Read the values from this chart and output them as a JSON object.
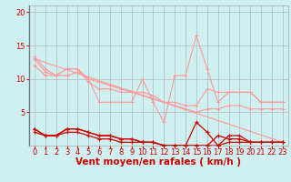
{
  "background_color": "#cff0f0",
  "grid_color": "#aaaaaa",
  "xlabel": "Vent moyen/en rafales ( km/h )",
  "xlabel_color": "#cc0000",
  "xlabel_fontsize": 7.5,
  "tick_color": "#cc0000",
  "tick_fontsize": 6.0,
  "xlim": [
    -0.5,
    23.5
  ],
  "ylim": [
    0,
    21
  ],
  "yticks": [
    5,
    10,
    15,
    20
  ],
  "xticks": [
    0,
    1,
    2,
    3,
    4,
    5,
    6,
    7,
    8,
    9,
    10,
    11,
    12,
    13,
    14,
    15,
    16,
    17,
    18,
    19,
    20,
    21,
    22,
    23
  ],
  "line_light_color": "#ff9999",
  "line_dark_color": "#cc0000",
  "lines_light": [
    {
      "x": [
        0,
        1,
        2,
        3,
        4,
        5,
        6,
        7,
        8,
        9,
        10,
        11,
        12,
        13,
        14,
        15,
        16,
        17,
        18,
        19,
        20,
        21,
        22,
        23
      ],
      "y": [
        13.3,
        11.5,
        10.5,
        11.5,
        11.5,
        10.0,
        6.5,
        6.5,
        6.5,
        6.5,
        10.0,
        6.5,
        3.5,
        10.5,
        10.5,
        16.5,
        11.5,
        6.5,
        8.0,
        8.0,
        8.0,
        6.5,
        6.5,
        6.5
      ]
    },
    {
      "x": [
        0,
        1,
        2,
        3,
        4,
        5,
        6,
        7,
        8,
        9,
        10,
        11,
        12,
        13,
        14,
        15,
        16,
        17,
        18,
        19,
        20,
        21,
        22,
        23
      ],
      "y": [
        12.0,
        10.5,
        10.5,
        11.5,
        11.5,
        9.5,
        8.5,
        8.5,
        8.0,
        8.0,
        8.0,
        7.5,
        6.5,
        6.5,
        6.0,
        6.0,
        8.5,
        8.0,
        8.0,
        8.0,
        8.0,
        6.5,
        6.5,
        6.5
      ]
    },
    {
      "x": [
        0,
        1,
        2,
        3,
        4,
        5,
        6,
        7,
        8,
        9,
        10,
        11,
        12,
        13,
        14,
        15,
        16,
        17,
        18,
        19,
        20,
        21,
        22,
        23
      ],
      "y": [
        13.0,
        11.0,
        10.5,
        10.5,
        11.0,
        10.0,
        9.5,
        9.0,
        8.5,
        8.0,
        7.5,
        7.0,
        6.5,
        6.0,
        5.5,
        5.0,
        5.5,
        5.5,
        6.0,
        6.0,
        5.5,
        5.5,
        5.5,
        5.5
      ]
    }
  ],
  "lines_dark": [
    {
      "x": [
        0,
        1,
        2,
        3,
        4,
        5,
        6,
        7,
        8,
        9,
        10,
        11,
        12,
        13,
        14,
        15,
        16,
        17,
        18,
        19,
        20,
        21,
        22,
        23
      ],
      "y": [
        2.5,
        1.5,
        1.5,
        2.5,
        2.5,
        2.0,
        1.5,
        1.5,
        1.0,
        1.0,
        0.5,
        0.5,
        0.0,
        0.0,
        0.0,
        3.5,
        2.0,
        0.0,
        1.5,
        1.5,
        0.5,
        0.5,
        0.5,
        0.5
      ]
    },
    {
      "x": [
        0,
        1,
        2,
        3,
        4,
        5,
        6,
        7,
        8,
        9,
        10,
        11,
        12,
        13,
        14,
        15,
        16,
        17,
        18,
        19,
        20,
        21,
        22,
        23
      ],
      "y": [
        2.5,
        1.5,
        1.5,
        2.5,
        2.5,
        2.0,
        1.5,
        1.5,
        1.0,
        1.0,
        0.5,
        0.5,
        0.0,
        0.0,
        0.0,
        0.0,
        0.0,
        1.5,
        1.0,
        1.0,
        0.5,
        0.5,
        0.5,
        0.5
      ]
    },
    {
      "x": [
        0,
        1,
        2,
        3,
        4,
        5,
        6,
        7,
        8,
        9,
        10,
        11,
        12,
        13,
        14,
        15,
        16,
        17,
        18,
        19,
        20,
        21,
        22,
        23
      ],
      "y": [
        2.0,
        1.5,
        1.5,
        2.0,
        2.0,
        1.5,
        1.0,
        1.0,
        0.5,
        0.5,
        0.5,
        0.5,
        0.0,
        0.0,
        0.0,
        0.0,
        0.0,
        0.0,
        0.5,
        0.5,
        0.5,
        0.5,
        0.5,
        0.5
      ]
    }
  ],
  "trend_line": {
    "x": [
      0,
      23
    ],
    "y": [
      13.0,
      0.5
    ]
  }
}
